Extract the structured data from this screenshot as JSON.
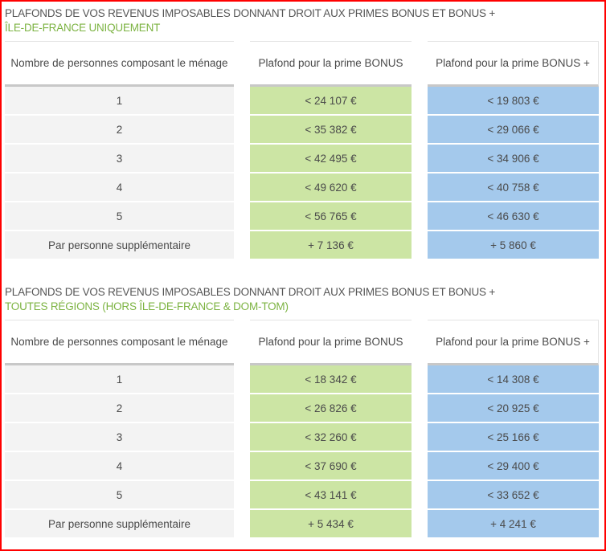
{
  "colors": {
    "frame_border": "#ff0000",
    "subtitle_green": "#7cb342",
    "bonus_column": "#cce5a4",
    "bonus_plus_column": "#a4c9ec",
    "household_column": "#f3f3f3",
    "header_rule": "#c8c8c8"
  },
  "tables": [
    {
      "title": "PLAFONDS DE VOS REVENUS IMPOSABLES DONNANT DROIT AUX PRIMES BONUS ET BONUS +",
      "subtitle": "ÎLE-DE-FRANCE UNIQUEMENT",
      "headers": {
        "household": "Nombre de personnes composant le ménage",
        "bonus": "Plafond pour la prime BONUS",
        "bonus_plus": "Plafond pour la prime BONUS +"
      },
      "rows": [
        {
          "household": "1",
          "bonus": "< 24 107 €",
          "bonus_plus": "< 19 803 €"
        },
        {
          "household": "2",
          "bonus": "< 35 382 €",
          "bonus_plus": "< 29 066 €"
        },
        {
          "household": "3",
          "bonus": "< 42 495 €",
          "bonus_plus": "< 34 906 €"
        },
        {
          "household": "4",
          "bonus": "< 49 620 €",
          "bonus_plus": "< 40 758 €"
        },
        {
          "household": "5",
          "bonus": "< 56 765 €",
          "bonus_plus": "< 46 630 €"
        },
        {
          "household": "Par personne supplémentaire",
          "bonus": "+ 7 136 €",
          "bonus_plus": "+ 5 860 €"
        }
      ]
    },
    {
      "title": "PLAFONDS DE VOS REVENUS IMPOSABLES DONNANT DROIT AUX PRIMES BONUS ET BONUS +",
      "subtitle": "TOUTES RÉGIONS (HORS ÎLE-DE-FRANCE & DOM-TOM)",
      "headers": {
        "household": "Nombre de personnes composant le ménage",
        "bonus": "Plafond pour la prime BONUS",
        "bonus_plus": "Plafond pour la prime BONUS +"
      },
      "rows": [
        {
          "household": "1",
          "bonus": "< 18 342 €",
          "bonus_plus": "< 14 308 €"
        },
        {
          "household": "2",
          "bonus": "< 26 826 €",
          "bonus_plus": "< 20 925 €"
        },
        {
          "household": "3",
          "bonus": "< 32 260 €",
          "bonus_plus": "< 25 166 €"
        },
        {
          "household": "4",
          "bonus": "< 37 690 €",
          "bonus_plus": "< 29 400 €"
        },
        {
          "household": "5",
          "bonus": "< 43 141 €",
          "bonus_plus": "< 33 652 €"
        },
        {
          "household": "Par personne supplémentaire",
          "bonus": "+ 5 434 €",
          "bonus_plus": "+ 4 241 €"
        }
      ]
    }
  ]
}
